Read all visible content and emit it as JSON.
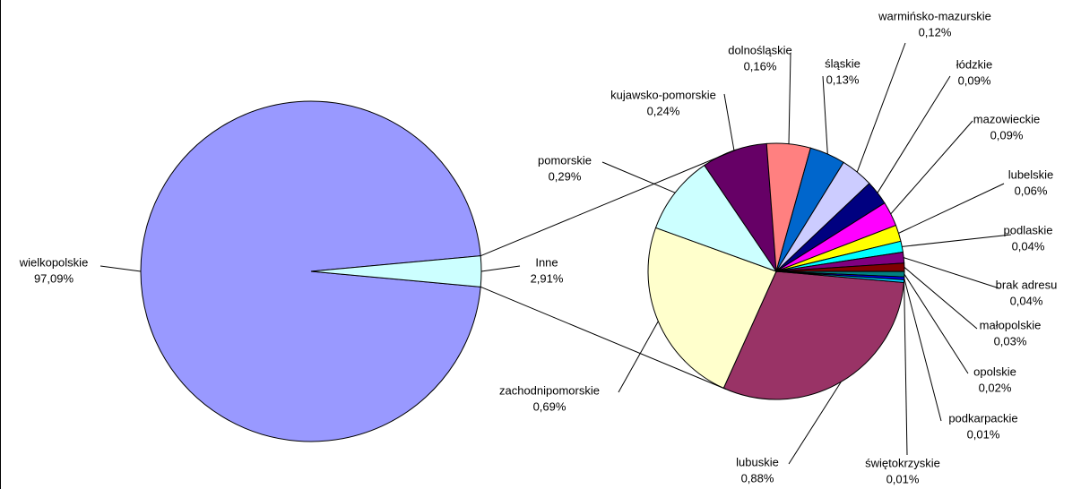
{
  "chart_data": [
    {
      "type": "pie",
      "categories": [
        "wielkopolskie",
        "Inne"
      ],
      "values": [
        97.09,
        2.91
      ],
      "value_labels": [
        "97,09%",
        "2,91%"
      ],
      "colors": [
        "#9999FF",
        "#CCFFFF"
      ]
    },
    {
      "type": "pie",
      "categories": [
        "lubuskie",
        "zachodnipomorskie",
        "pomorskie",
        "kujawsko-pomorskie",
        "dolnośląskie",
        "śląskie",
        "warmińsko-mazurskie",
        "łódzkie",
        "mazowieckie",
        "lubelskie",
        "podlaskie",
        "brak adresu",
        "małopolskie",
        "opolskie",
        "podkarpackie",
        "świętokrzyskie"
      ],
      "values": [
        0.88,
        0.69,
        0.29,
        0.24,
        0.16,
        0.13,
        0.12,
        0.09,
        0.09,
        0.06,
        0.04,
        0.04,
        0.03,
        0.02,
        0.01,
        0.01
      ],
      "value_labels": [
        "0,88%",
        "0,69%",
        "0,29%",
        "0,24%",
        "0,16%",
        "0,13%",
        "0,12%",
        "0,09%",
        "0,09%",
        "0,06%",
        "0,04%",
        "0,04%",
        "0,03%",
        "0,02%",
        "0,01%",
        "0,01%"
      ],
      "colors": [
        "#993366",
        "#FFFFCC",
        "#CCFFFF",
        "#660066",
        "#FF8080",
        "#0066CC",
        "#CCCCFF",
        "#000080",
        "#FF00FF",
        "#FFFF00",
        "#00FFFF",
        "#800080",
        "#800000",
        "#008080",
        "#0000FF",
        "#00CCFF"
      ]
    }
  ]
}
